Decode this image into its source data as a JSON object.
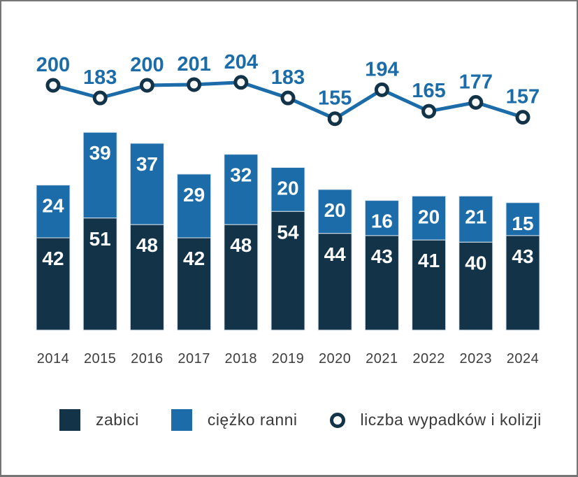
{
  "chart_data": {
    "type": "bar",
    "subtype": "stacked-bars-with-line-overlay",
    "categories": [
      "2014",
      "2015",
      "2016",
      "2017",
      "2018",
      "2019",
      "2020",
      "2021",
      "2022",
      "2023",
      "2024"
    ],
    "series": [
      {
        "name": "zabici",
        "type": "bar",
        "color": "#133349",
        "label_color": "#ffffff",
        "values": [
          42,
          51,
          48,
          42,
          48,
          54,
          44,
          43,
          41,
          40,
          43
        ]
      },
      {
        "name": "ciężko ranni",
        "type": "bar",
        "color": "#1b6ca8",
        "label_color": "#ffffff",
        "values": [
          24,
          39,
          37,
          29,
          32,
          20,
          20,
          16,
          20,
          21,
          15
        ]
      },
      {
        "name": "liczba wypadków i kolizji",
        "type": "line",
        "color": "#1b6ca8",
        "marker_stroke": "#133349",
        "marker_fill": "#f9f9f9",
        "label_color": "#1b6ca8",
        "values": [
          200,
          183,
          200,
          201,
          204,
          183,
          155,
          194,
          165,
          177,
          157
        ]
      }
    ],
    "title": "",
    "xlabel": "",
    "ylabel": "",
    "axis_ticks_visible": false,
    "grid": false,
    "data_labels_visible": true,
    "legend_position": "bottom",
    "x_tick_color": "#3d3d3d"
  },
  "legend": {
    "items": [
      {
        "label": "zabici",
        "swatch": "square",
        "color": "#133349"
      },
      {
        "label": "ciężko ranni",
        "swatch": "square",
        "color": "#1b6ca8"
      },
      {
        "label": "liczba wypadków i kolizji",
        "swatch": "circle-outline",
        "color": "#133349"
      }
    ]
  }
}
